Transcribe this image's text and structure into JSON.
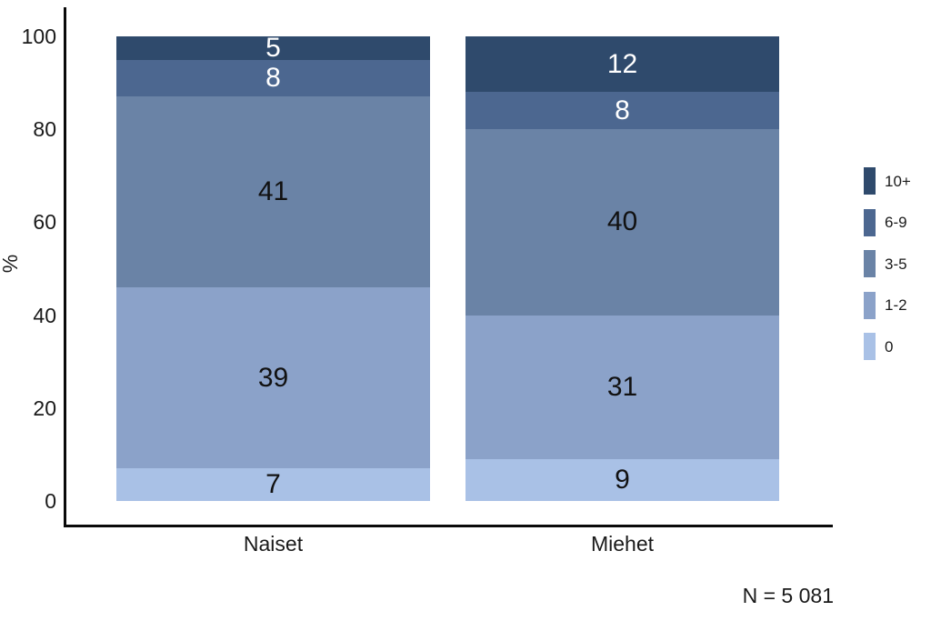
{
  "chart_data": {
    "type": "bar",
    "subtype": "stacked-percent",
    "categories": [
      "Naiset",
      "Miehet"
    ],
    "series": [
      {
        "name": "10+",
        "color": "#2F4A6C",
        "label_color": "#ffffff",
        "values": [
          5,
          12
        ]
      },
      {
        "name": "6-9",
        "color": "#4C6790",
        "label_color": "#ffffff",
        "values": [
          8,
          8
        ]
      },
      {
        "name": "3-5",
        "color": "#6A83A6",
        "label_color": "#111111",
        "values": [
          41,
          40
        ]
      },
      {
        "name": "1-2",
        "color": "#8BA2C9",
        "label_color": "#111111",
        "values": [
          39,
          31
        ]
      },
      {
        "name": "0",
        "color": "#A9C1E6",
        "label_color": "#111111",
        "values": [
          7,
          9
        ]
      }
    ],
    "title": "",
    "xlabel": "",
    "ylabel": "%",
    "ylim": [
      0,
      100
    ],
    "yticks": [
      0,
      20,
      40,
      60,
      80,
      100
    ],
    "grid": false,
    "legend_position": "right",
    "note": "N = 5 081"
  }
}
